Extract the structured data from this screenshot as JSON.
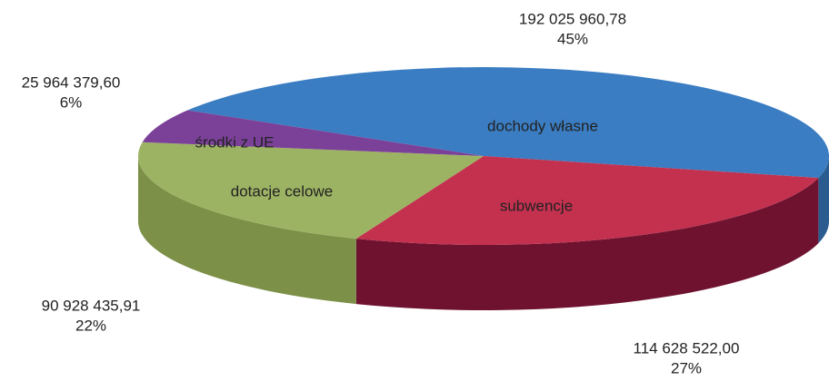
{
  "chart_data": {
    "type": "pie3d",
    "categories": [
      "dochody własne",
      "subwencje",
      "dotacje celowe",
      "środki z UE"
    ],
    "values": [
      192025960.78,
      114628522.0,
      90928435.91,
      25964379.6
    ],
    "value_labels": [
      "192 025 960,78",
      "114 628 522,00",
      "90 928 435,91",
      "25 964 379,60"
    ],
    "percentages": [
      45,
      27,
      22,
      6
    ],
    "percent_labels": [
      "45%",
      "27%",
      "22%",
      "6%"
    ],
    "colors": [
      "#3a7dc2",
      "#c3314f",
      "#9db364",
      "#7b4199"
    ],
    "side_colors": [
      "#2a5c8f",
      "#6e1230",
      "#7c9048",
      "#5a2c72"
    ]
  }
}
